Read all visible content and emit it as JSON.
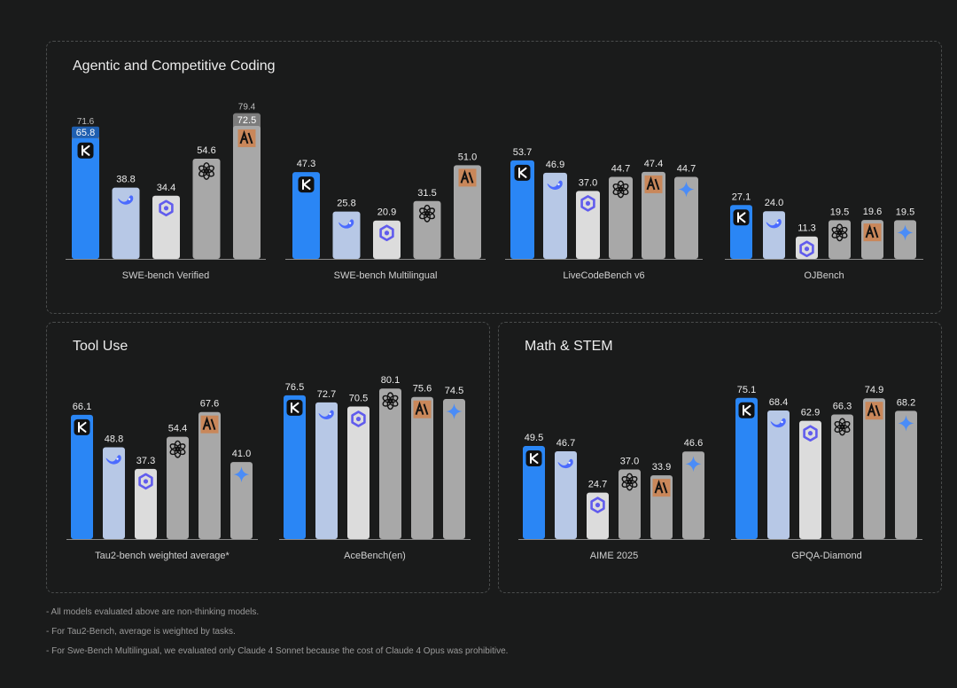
{
  "panels": {
    "coding": "Agentic and Competitive Coding",
    "tool_use": "Tool Use",
    "math": "Math & STEM"
  },
  "notes": [
    "- All models evaluated above are non-thinking models.",
    "- For Tau2-Bench, average is weighted by tasks.",
    "- For Swe-Bench Multilingual, we evaluated only Claude 4 Sonnet because the cost of Claude 4 Opus was prohibitive."
  ],
  "colors": {
    "kimi": "#2a86f5",
    "deepseek": "#b7c8e6",
    "qwen": "#dcdcdc",
    "openai": "#a8a8a8",
    "claude": "#a8a8a8",
    "gemini": "#a8a8a8",
    "claude_badge": "#c9875a",
    "overlay": "#7a7a7a"
  },
  "chart_data": [
    {
      "type": "bar",
      "panel": "coding",
      "title": "SWE-bench Verified",
      "ylim": [
        0,
        100
      ],
      "series": [
        {
          "name": "Kimi",
          "model": "kimi",
          "value": 65.8,
          "top_value": 71.6
        },
        {
          "name": "DeepSeek",
          "model": "deepseek",
          "value": 38.8
        },
        {
          "name": "Qwen",
          "model": "qwen",
          "value": 34.4
        },
        {
          "name": "OpenAI",
          "model": "openai",
          "value": 54.6
        },
        {
          "name": "Claude",
          "model": "claude",
          "value": 72.5,
          "top_value": 79.4
        }
      ]
    },
    {
      "type": "bar",
      "panel": "coding",
      "title": "SWE-bench Multilingual",
      "ylim": [
        0,
        100
      ],
      "series": [
        {
          "name": "Kimi",
          "model": "kimi",
          "value": 47.3
        },
        {
          "name": "DeepSeek",
          "model": "deepseek",
          "value": 25.8
        },
        {
          "name": "Qwen",
          "model": "qwen",
          "value": 20.9
        },
        {
          "name": "OpenAI",
          "model": "openai",
          "value": 31.5
        },
        {
          "name": "Claude",
          "model": "claude",
          "value": 51.0
        }
      ]
    },
    {
      "type": "bar",
      "panel": "coding",
      "title": "LiveCodeBench v6",
      "ylim": [
        0,
        100
      ],
      "series": [
        {
          "name": "Kimi",
          "model": "kimi",
          "value": 53.7
        },
        {
          "name": "DeepSeek",
          "model": "deepseek",
          "value": 46.9
        },
        {
          "name": "Qwen",
          "model": "qwen",
          "value": 37.0
        },
        {
          "name": "OpenAI",
          "model": "openai",
          "value": 44.7
        },
        {
          "name": "Claude",
          "model": "claude",
          "value": 47.4
        },
        {
          "name": "Gemini",
          "model": "gemini",
          "value": 44.7
        }
      ]
    },
    {
      "type": "bar",
      "panel": "coding",
      "title": "OJBench",
      "ylim": [
        0,
        40
      ],
      "series": [
        {
          "name": "Kimi",
          "model": "kimi",
          "value": 27.1
        },
        {
          "name": "DeepSeek",
          "model": "deepseek",
          "value": 24.0
        },
        {
          "name": "Qwen",
          "model": "qwen",
          "value": 11.3
        },
        {
          "name": "OpenAI",
          "model": "openai",
          "value": 19.5
        },
        {
          "name": "Claude",
          "model": "claude",
          "value": 19.6
        },
        {
          "name": "Gemini",
          "model": "gemini",
          "value": 19.5
        }
      ]
    },
    {
      "type": "bar",
      "panel": "tool_use",
      "title": "Tau2-bench weighted average*",
      "ylim": [
        0,
        100
      ],
      "series": [
        {
          "name": "Kimi",
          "model": "kimi",
          "value": 66.1
        },
        {
          "name": "DeepSeek",
          "model": "deepseek",
          "value": 48.8
        },
        {
          "name": "Qwen",
          "model": "qwen",
          "value": 37.3
        },
        {
          "name": "OpenAI",
          "model": "openai",
          "value": 54.4
        },
        {
          "name": "Claude",
          "model": "claude",
          "value": 67.6
        },
        {
          "name": "Gemini",
          "model": "gemini",
          "value": 41.0
        }
      ]
    },
    {
      "type": "bar",
      "panel": "tool_use",
      "title": "AceBench(en)",
      "ylim": [
        0,
        100
      ],
      "series": [
        {
          "name": "Kimi",
          "model": "kimi",
          "value": 76.5
        },
        {
          "name": "DeepSeek",
          "model": "deepseek",
          "value": 72.7
        },
        {
          "name": "Qwen",
          "model": "qwen",
          "value": 70.5
        },
        {
          "name": "OpenAI",
          "model": "openai",
          "value": 80.1
        },
        {
          "name": "Claude",
          "model": "claude",
          "value": 75.6
        },
        {
          "name": "Gemini",
          "model": "gemini",
          "value": 74.5
        }
      ]
    },
    {
      "type": "bar",
      "panel": "math",
      "title": "AIME 2025",
      "ylim": [
        0,
        100
      ],
      "series": [
        {
          "name": "Kimi",
          "model": "kimi",
          "value": 49.5
        },
        {
          "name": "DeepSeek",
          "model": "deepseek",
          "value": 46.7
        },
        {
          "name": "Qwen",
          "model": "qwen",
          "value": 24.7
        },
        {
          "name": "OpenAI",
          "model": "openai",
          "value": 37.0
        },
        {
          "name": "Claude",
          "model": "claude",
          "value": 33.9
        },
        {
          "name": "Gemini",
          "model": "gemini",
          "value": 46.6
        }
      ]
    },
    {
      "type": "bar",
      "panel": "math",
      "title": "GPQA-Diamond",
      "ylim": [
        0,
        100
      ],
      "series": [
        {
          "name": "Kimi",
          "model": "kimi",
          "value": 75.1
        },
        {
          "name": "DeepSeek",
          "model": "deepseek",
          "value": 68.4
        },
        {
          "name": "Qwen",
          "model": "qwen",
          "value": 62.9
        },
        {
          "name": "OpenAI",
          "model": "openai",
          "value": 66.3
        },
        {
          "name": "Claude",
          "model": "claude",
          "value": 74.9
        },
        {
          "name": "Gemini",
          "model": "gemini",
          "value": 68.2
        }
      ]
    }
  ]
}
